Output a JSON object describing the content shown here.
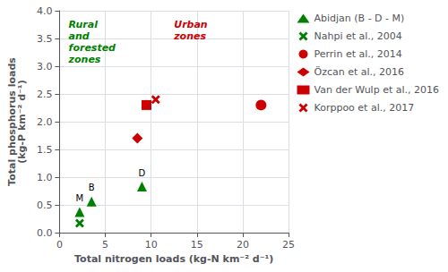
{
  "chart_data": {
    "type": "scatter",
    "xlabel": "Total nitrogen loads (kg-N km⁻² d⁻¹)",
    "ylabel": "Total phosphorus loads\n(kg-P km⁻² d⁻¹)",
    "xlim": [
      0,
      25
    ],
    "ylim": [
      0,
      4.0
    ],
    "xticks": [
      0,
      5,
      10,
      15,
      20,
      25
    ],
    "yticks": [
      {
        "value": 0,
        "label": "0.0"
      },
      0.5,
      {
        "value": 1,
        "label": "1.0"
      },
      1.5,
      {
        "value": 2,
        "label": "2.0"
      },
      2.5,
      {
        "value": 3,
        "label": "3.0"
      },
      3.5,
      {
        "value": 4,
        "label": "4.0"
      }
    ],
    "grid": true,
    "legend": "right",
    "series": [
      {
        "name": "Abidjan (B - D - M)",
        "marker": "triangle",
        "color": "#008000",
        "x": [
          2.2,
          3.5,
          9.0
        ],
        "values": [
          0.37,
          0.56,
          0.83
        ],
        "labels": [
          "M",
          "B",
          "D"
        ]
      },
      {
        "name": "Nahpi et al., 2004",
        "marker": "x",
        "color": "#008000",
        "x": [
          2.2
        ],
        "values": [
          0.17
        ]
      },
      {
        "name": "Perrin et al., 2014",
        "marker": "circle",
        "color": "#cc0000",
        "x": [
          22.0
        ],
        "values": [
          2.3
        ]
      },
      {
        "name": "Özcan et al., 2016",
        "marker": "diamond",
        "color": "#cc0000",
        "x": [
          8.5
        ],
        "values": [
          1.7
        ]
      },
      {
        "name": "Van der Wulp et al., 2016",
        "marker": "square",
        "color": "#cc0000",
        "x": [
          9.5
        ],
        "values": [
          2.3
        ]
      },
      {
        "name": "Korppoo et al., 2017",
        "marker": "x",
        "color": "#cc0000",
        "x": [
          10.5
        ],
        "values": [
          2.4
        ]
      }
    ],
    "annotations": [
      {
        "text": "Rural\nand\nforested\nzones",
        "x": 1.0,
        "y": 3.85,
        "color": "#008000"
      },
      {
        "text": "Urban\nzones",
        "x": 12.5,
        "y": 3.85,
        "color": "#cc0000"
      }
    ]
  }
}
